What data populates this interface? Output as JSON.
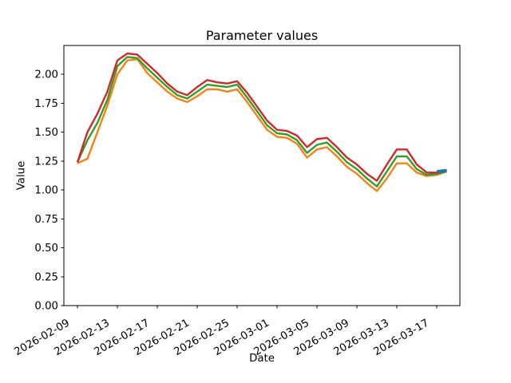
{
  "figure": {
    "background": "#ffffff"
  },
  "chart_data": {
    "type": "line",
    "title": "Parameter values",
    "xlabel": "Date",
    "ylabel": "Value",
    "grid": false,
    "legend": false,
    "ylim": [
      0,
      2.249
    ],
    "xlim_days": [
      -1.36,
      38.32
    ],
    "yticks": [
      {
        "value": 0.0,
        "label": "0.00"
      },
      {
        "value": 0.25,
        "label": "0.25"
      },
      {
        "value": 0.5,
        "label": "0.50"
      },
      {
        "value": 0.75,
        "label": "0.75"
      },
      {
        "value": 1.0,
        "label": "1.00"
      },
      {
        "value": 1.25,
        "label": "1.25"
      },
      {
        "value": 1.5,
        "label": "1.50"
      },
      {
        "value": 1.75,
        "label": "1.75"
      },
      {
        "value": 2.0,
        "label": "2.00"
      }
    ],
    "xticks": [
      "2026-02-09",
      "2026-02-13",
      "2026-02-17",
      "2026-02-21",
      "2026-02-25",
      "2026-03-01",
      "2026-03-05",
      "2026-03-09",
      "2026-03-13",
      "2026-03-17"
    ],
    "x_dates": [
      "2026-02-09",
      "2026-02-10",
      "2026-02-11",
      "2026-02-12",
      "2026-02-13",
      "2026-02-14",
      "2026-02-15",
      "2026-02-16",
      "2026-02-17",
      "2026-02-18",
      "2026-02-19",
      "2026-02-20",
      "2026-02-21",
      "2026-02-22",
      "2026-02-23",
      "2026-02-24",
      "2026-02-25",
      "2026-02-26",
      "2026-02-27",
      "2026-02-28",
      "2026-03-01",
      "2026-03-02",
      "2026-03-03",
      "2026-03-04",
      "2026-03-05",
      "2026-03-06",
      "2026-03-07",
      "2026-03-08",
      "2026-03-09",
      "2026-03-10",
      "2026-03-11",
      "2026-03-12",
      "2026-03-13",
      "2026-03-14",
      "2026-03-15",
      "2026-03-16",
      "2026-03-17",
      "2026-03-18"
    ],
    "series": [
      {
        "name": "orange-line",
        "color": "#ff7f0e",
        "width": 2.4,
        "values": [
          1.23,
          1.27,
          1.5,
          1.73,
          2.0,
          2.12,
          2.13,
          2.01,
          1.93,
          1.85,
          1.79,
          1.76,
          1.81,
          1.87,
          1.87,
          1.85,
          1.87,
          1.76,
          1.64,
          1.52,
          1.46,
          1.45,
          1.4,
          1.28,
          1.35,
          1.37,
          1.29,
          1.2,
          1.14,
          1.06,
          0.99,
          1.1,
          1.23,
          1.23,
          1.15,
          1.12,
          1.13,
          1.16
        ]
      },
      {
        "name": "green-line",
        "color": "#2ca02c",
        "width": 2.4,
        "values": [
          1.24,
          1.43,
          1.58,
          1.78,
          2.07,
          2.15,
          2.14,
          2.05,
          1.97,
          1.89,
          1.82,
          1.79,
          1.85,
          1.91,
          1.9,
          1.89,
          1.91,
          1.8,
          1.68,
          1.56,
          1.49,
          1.48,
          1.43,
          1.32,
          1.39,
          1.41,
          1.33,
          1.24,
          1.18,
          1.1,
          1.03,
          1.16,
          1.29,
          1.29,
          1.18,
          1.13,
          1.14,
          1.16
        ]
      },
      {
        "name": "red-line",
        "color": "#d62728",
        "width": 2.4,
        "values": [
          1.24,
          1.5,
          1.66,
          1.85,
          2.12,
          2.18,
          2.17,
          2.09,
          2.01,
          1.92,
          1.85,
          1.82,
          1.89,
          1.95,
          1.93,
          1.92,
          1.94,
          1.84,
          1.72,
          1.6,
          1.52,
          1.51,
          1.47,
          1.37,
          1.44,
          1.45,
          1.37,
          1.28,
          1.22,
          1.14,
          1.08,
          1.22,
          1.35,
          1.35,
          1.22,
          1.15,
          1.15,
          1.17
        ]
      },
      {
        "name": "blue-end-line",
        "color": "#1f77b4",
        "width": 3.5,
        "x_dates": [
          "2026-03-17",
          "2026-03-18"
        ],
        "values": [
          1.16,
          1.17
        ]
      }
    ]
  }
}
